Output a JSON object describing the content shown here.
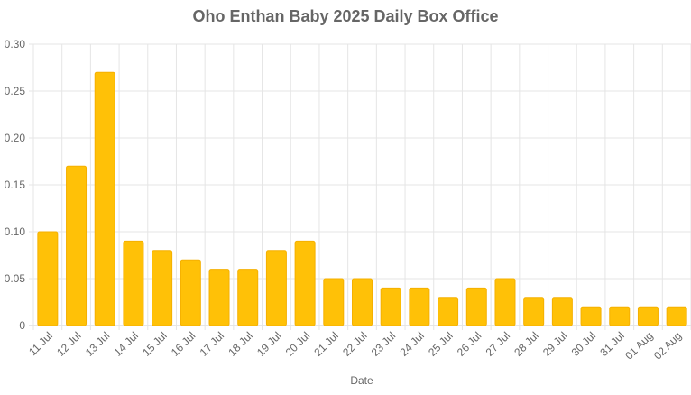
{
  "chart_data": {
    "type": "bar",
    "title": "Oho Enthan Baby 2025 Daily Box Office",
    "xlabel": "Date",
    "ylabel": "",
    "ylim": [
      0,
      0.3
    ],
    "yticks": [
      "0",
      "0.05",
      "0.10",
      "0.15",
      "0.20",
      "0.25",
      "0.30"
    ],
    "ytick_values": [
      0,
      0.05,
      0.1,
      0.15,
      0.2,
      0.25,
      0.3
    ],
    "grid": true,
    "legend": "none",
    "bar_color": "#FFC107",
    "bar_border_color": "#F5B000",
    "categories": [
      "11 Jul",
      "12 Jul",
      "13 Jul",
      "14 Jul",
      "15 Jul",
      "16 Jul",
      "17 Jul",
      "18 Jul",
      "19 Jul",
      "20 Jul",
      "21 Jul",
      "22 Jul",
      "23 Jul",
      "24 Jul",
      "25 Jul",
      "26 Jul",
      "27 Jul",
      "28 Jul",
      "29 Jul",
      "30 Jul",
      "31 Jul",
      "01 Aug",
      "02 Aug"
    ],
    "values": [
      0.1,
      0.17,
      0.27,
      0.09,
      0.08,
      0.07,
      0.06,
      0.06,
      0.08,
      0.09,
      0.05,
      0.05,
      0.04,
      0.04,
      0.03,
      0.04,
      0.05,
      0.03,
      0.03,
      0.02,
      0.02,
      0.02,
      0.02
    ]
  }
}
